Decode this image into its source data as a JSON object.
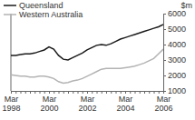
{
  "chart_data": {
    "type": "line",
    "y_label": "$m",
    "categories": [
      "Mar 1998",
      null,
      null,
      null,
      null,
      null,
      null,
      null,
      "Mar 2000",
      null,
      null,
      null,
      null,
      null,
      null,
      null,
      "Mar 2002",
      null,
      null,
      null,
      null,
      null,
      null,
      null,
      "Mar 2004",
      null,
      null,
      null,
      null,
      null,
      null,
      null,
      "Mar 2006"
    ],
    "series": [
      {
        "name": "Queensland",
        "color": "#1a1a1a",
        "values": [
          3300,
          3300,
          3350,
          3400,
          3400,
          3450,
          3550,
          3650,
          3850,
          3700,
          3300,
          3050,
          3000,
          3150,
          3300,
          3450,
          3650,
          3800,
          3950,
          4000,
          3950,
          4050,
          4200,
          4350,
          4450,
          4550,
          4650,
          4750,
          4850,
          4950,
          5050,
          5150,
          5300
        ]
      },
      {
        "name": "Western Australia",
        "color": "#b3b3b3",
        "values": [
          2050,
          2000,
          1950,
          1950,
          1900,
          1900,
          1950,
          1950,
          1900,
          1800,
          1600,
          1500,
          1550,
          1650,
          1700,
          1800,
          1950,
          2100,
          2250,
          2400,
          2450,
          2450,
          2450,
          2450,
          2500,
          2550,
          2600,
          2700,
          2800,
          2950,
          3100,
          3400,
          3700
        ]
      }
    ],
    "ylim": [
      1000,
      6000
    ],
    "yticks": [
      1000,
      2000,
      3000,
      4000,
      5000,
      6000
    ],
    "grid": false
  }
}
